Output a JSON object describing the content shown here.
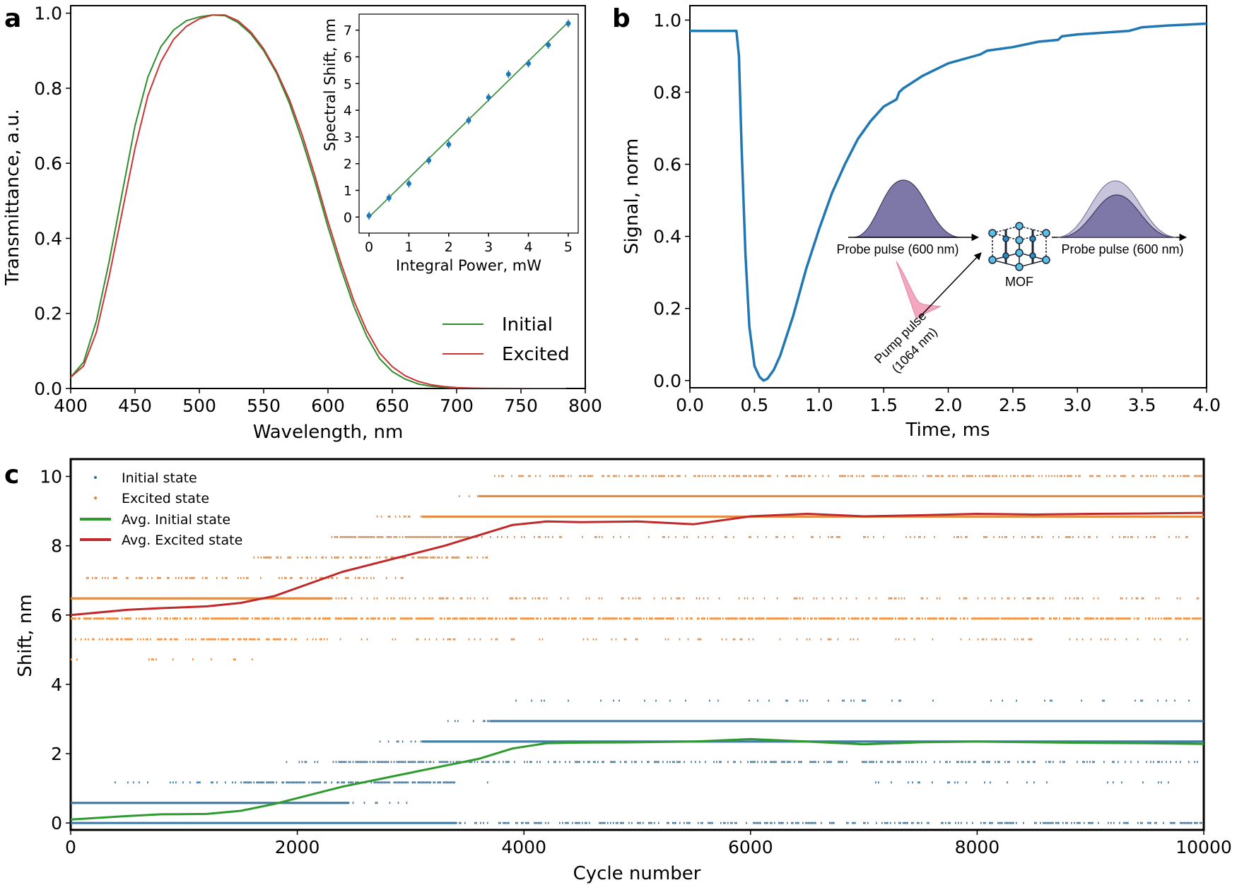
{
  "chart_data": [
    {
      "panel": "a",
      "type": "line",
      "xlabel": "Wavelength, nm",
      "ylabel": "Transmittance, a.u.",
      "xlim": [
        400,
        800
      ],
      "ylim": [
        0,
        1.02
      ],
      "xticks": [
        400,
        450,
        500,
        550,
        600,
        650,
        700,
        750,
        800
      ],
      "yticks": [
        0.0,
        0.2,
        0.4,
        0.6,
        0.8,
        1.0
      ],
      "ytick_labels": [
        "0.0",
        "0.2",
        "0.4",
        "0.6",
        "0.8",
        "1.0"
      ],
      "legend_position": "lower-right",
      "series": [
        {
          "name": "Initial",
          "color": "#2e8b2e",
          "x": [
            400,
            410,
            420,
            430,
            440,
            450,
            460,
            470,
            480,
            490,
            500,
            510,
            520,
            530,
            540,
            550,
            560,
            570,
            580,
            590,
            600,
            610,
            620,
            630,
            640,
            650,
            660,
            670,
            680,
            690,
            700,
            710,
            720,
            730,
            740,
            760,
            785
          ],
          "y": [
            0.03,
            0.07,
            0.18,
            0.34,
            0.52,
            0.7,
            0.83,
            0.91,
            0.955,
            0.98,
            0.99,
            0.995,
            0.993,
            0.975,
            0.945,
            0.9,
            0.84,
            0.76,
            0.66,
            0.55,
            0.43,
            0.32,
            0.22,
            0.14,
            0.08,
            0.045,
            0.025,
            0.012,
            0.006,
            0.003,
            0.001,
            0.0005,
            0.0002,
            0.0001,
            0,
            0,
            0
          ]
        },
        {
          "name": "Excited",
          "color": "#cc3333",
          "x": [
            400,
            410,
            420,
            430,
            440,
            450,
            460,
            470,
            480,
            490,
            500,
            510,
            520,
            530,
            540,
            550,
            560,
            570,
            580,
            590,
            600,
            610,
            620,
            630,
            640,
            650,
            660,
            670,
            680,
            690,
            700,
            710,
            720,
            730,
            740,
            760,
            785
          ],
          "y": [
            0.03,
            0.06,
            0.15,
            0.3,
            0.47,
            0.64,
            0.78,
            0.87,
            0.93,
            0.965,
            0.985,
            0.995,
            0.995,
            0.98,
            0.95,
            0.905,
            0.845,
            0.77,
            0.675,
            0.565,
            0.445,
            0.335,
            0.235,
            0.155,
            0.095,
            0.058,
            0.034,
            0.019,
            0.01,
            0.005,
            0.0025,
            0.0012,
            0.0005,
            0.0002,
            0.0001,
            0,
            0
          ]
        }
      ],
      "inset": {
        "type": "scatter",
        "xlabel": "Integral Power, mW",
        "ylabel": "Spectral Shift, nm",
        "xlim": [
          -0.25,
          5.25
        ],
        "ylim": [
          -0.6,
          7.6
        ],
        "xticks": [
          0,
          1,
          2,
          3,
          4,
          5
        ],
        "yticks": [
          0,
          1,
          2,
          3,
          4,
          5,
          6,
          7
        ],
        "x": [
          0,
          0.5,
          1,
          1.5,
          2,
          2.5,
          3,
          3.5,
          4,
          4.5,
          5
        ],
        "y": [
          0.05,
          0.72,
          1.25,
          2.12,
          2.72,
          3.62,
          4.48,
          5.35,
          5.75,
          6.45,
          7.25
        ],
        "yerr": 0.15,
        "fit": [
          [
            0,
            0
          ],
          [
            5,
            7.3
          ]
        ],
        "point_color": "#1f77b4",
        "fit_color": "#2e8b2e"
      }
    },
    {
      "panel": "b",
      "type": "line",
      "xlabel": "Time, ms",
      "ylabel": "Signal, norm",
      "xlim": [
        0,
        4.0
      ],
      "ylim": [
        -0.02,
        1.04
      ],
      "xticks": [
        0.0,
        0.5,
        1.0,
        1.5,
        2.0,
        2.5,
        3.0,
        3.5,
        4.0
      ],
      "xtick_labels": [
        "0.0",
        "0.5",
        "1.0",
        "1.5",
        "2.0",
        "2.5",
        "3.0",
        "3.5",
        "4.0"
      ],
      "yticks": [
        0.0,
        0.2,
        0.4,
        0.6,
        0.8,
        1.0
      ],
      "ytick_labels": [
        "0.0",
        "0.2",
        "0.4",
        "0.6",
        "0.8",
        "1.0"
      ],
      "series": [
        {
          "name": "Signal",
          "color": "#1f77b4",
          "x": [
            0,
            0.2,
            0.36,
            0.38,
            0.4,
            0.43,
            0.46,
            0.5,
            0.54,
            0.57,
            0.6,
            0.65,
            0.7,
            0.8,
            0.9,
            1.0,
            1.1,
            1.2,
            1.3,
            1.4,
            1.5,
            1.6,
            1.62,
            1.65,
            1.8,
            2.0,
            2.2,
            2.25,
            2.3,
            2.5,
            2.7,
            2.85,
            2.88,
            3.0,
            3.2,
            3.4,
            3.45,
            3.5,
            3.7,
            4.0
          ],
          "y": [
            0.97,
            0.97,
            0.97,
            0.9,
            0.65,
            0.35,
            0.15,
            0.04,
            0.01,
            0.0,
            0.005,
            0.03,
            0.07,
            0.18,
            0.31,
            0.42,
            0.52,
            0.6,
            0.67,
            0.72,
            0.76,
            0.78,
            0.8,
            0.81,
            0.845,
            0.88,
            0.9,
            0.905,
            0.915,
            0.925,
            0.94,
            0.945,
            0.955,
            0.96,
            0.965,
            0.97,
            0.975,
            0.98,
            0.985,
            0.99
          ]
        }
      ],
      "diagram": {
        "probe_in_label": "Probe pulse (600 nm)",
        "probe_out_label": "Probe pulse (600 nm)",
        "pump_label_line1": "Pump pulse",
        "pump_label_line2": "(1064 nm)",
        "sample_label": "MOF"
      }
    },
    {
      "panel": "c",
      "type": "scatter",
      "xlabel": "Cycle number",
      "ylabel": "Shift, nm",
      "xlim": [
        0,
        10000
      ],
      "ylim": [
        -0.2,
        10.5
      ],
      "xticks": [
        0,
        2000,
        4000,
        6000,
        8000,
        10000
      ],
      "yticks": [
        0,
        2,
        4,
        6,
        8,
        10
      ],
      "legend_position": "top-left",
      "legend": [
        "Initial state",
        "Excited state",
        "Avg. Initial state",
        "Avg. Excited state"
      ],
      "initial_levels": [
        {
          "y": 0.0,
          "bands": [
            [
              0,
              3400,
              0.95
            ],
            [
              3400,
              10000,
              0.5
            ]
          ]
        },
        {
          "y": 0.58,
          "bands": [
            [
              0,
              2450,
              0.95
            ],
            [
              2450,
              3000,
              0.2
            ]
          ]
        },
        {
          "y": 1.17,
          "bands": [
            [
              300,
              1500,
              0.2
            ],
            [
              1500,
              3400,
              0.7
            ],
            [
              3400,
              3700,
              0.1
            ],
            [
              7000,
              9900,
              0.07
            ]
          ]
        },
        {
          "y": 1.76,
          "bands": [
            [
              1900,
              2300,
              0.15
            ],
            [
              2300,
              3700,
              0.75
            ],
            [
              3700,
              10000,
              0.4
            ]
          ]
        },
        {
          "y": 2.35,
          "bands": [
            [
              2700,
              3100,
              0.2
            ],
            [
              3100,
              10000,
              0.95
            ]
          ]
        },
        {
          "y": 2.94,
          "bands": [
            [
              3300,
              3700,
              0.3
            ],
            [
              3700,
              10000,
              0.95
            ]
          ]
        },
        {
          "y": 3.53,
          "bands": [
            [
              3900,
              9900,
              0.1
            ]
          ]
        }
      ],
      "excited_levels": [
        {
          "y": 4.72,
          "bands": [
            [
              0,
              1800,
              0.15
            ]
          ]
        },
        {
          "y": 5.3,
          "bands": [
            [
              0,
              2300,
              0.5
            ],
            [
              2300,
              9900,
              0.15
            ]
          ]
        },
        {
          "y": 5.9,
          "bands": [
            [
              0,
              10000,
              0.75
            ]
          ]
        },
        {
          "y": 6.48,
          "bands": [
            [
              0,
              2300,
              0.95
            ],
            [
              2300,
              10000,
              0.25
            ]
          ]
        },
        {
          "y": 7.07,
          "bands": [
            [
              100,
              2800,
              0.35
            ],
            [
              2800,
              3000,
              0.1
            ]
          ]
        },
        {
          "y": 7.66,
          "bands": [
            [
              1600,
              3700,
              0.5
            ],
            [
              5100,
              5200,
              0.05
            ]
          ]
        },
        {
          "y": 8.25,
          "bands": [
            [
              2300,
              3600,
              0.85
            ],
            [
              3600,
              10000,
              0.25
            ]
          ]
        },
        {
          "y": 8.84,
          "bands": [
            [
              2700,
              3100,
              0.2
            ],
            [
              3100,
              10000,
              0.95
            ]
          ]
        },
        {
          "y": 9.43,
          "bands": [
            [
              3300,
              3600,
              0.1
            ],
            [
              3600,
              10000,
              0.95
            ]
          ]
        },
        {
          "y": 10.01,
          "bands": [
            [
              3700,
              10000,
              0.5
            ]
          ]
        }
      ],
      "series": [
        {
          "name": "Avg. Initial state",
          "color": "#2e9b2e",
          "x": [
            0,
            500,
            800,
            1200,
            1500,
            1800,
            2100,
            2400,
            2700,
            3000,
            3300,
            3600,
            3900,
            4200,
            4500,
            5000,
            5500,
            6000,
            6500,
            7000,
            7500,
            8000,
            8500,
            9000,
            9500,
            10000
          ],
          "y": [
            0.1,
            0.2,
            0.25,
            0.26,
            0.35,
            0.55,
            0.8,
            1.05,
            1.25,
            1.45,
            1.65,
            1.85,
            2.15,
            2.3,
            2.32,
            2.33,
            2.35,
            2.42,
            2.35,
            2.27,
            2.33,
            2.35,
            2.33,
            2.31,
            2.3,
            2.28
          ]
        },
        {
          "name": "Avg. Excited state",
          "color": "#c0282a",
          "x": [
            0,
            500,
            800,
            1200,
            1500,
            1800,
            2100,
            2400,
            2700,
            3000,
            3300,
            3600,
            3900,
            4200,
            4500,
            5000,
            5500,
            6000,
            6500,
            7000,
            7500,
            8000,
            8500,
            9000,
            9500,
            10000
          ],
          "y": [
            6.0,
            6.15,
            6.2,
            6.25,
            6.35,
            6.55,
            6.9,
            7.25,
            7.5,
            7.75,
            8.0,
            8.3,
            8.6,
            8.7,
            8.68,
            8.7,
            8.62,
            8.85,
            8.92,
            8.85,
            8.88,
            8.92,
            8.9,
            8.92,
            8.93,
            8.95
          ]
        }
      ],
      "initial_color": "#2e6f9e",
      "excited_color": "#e08030"
    }
  ]
}
